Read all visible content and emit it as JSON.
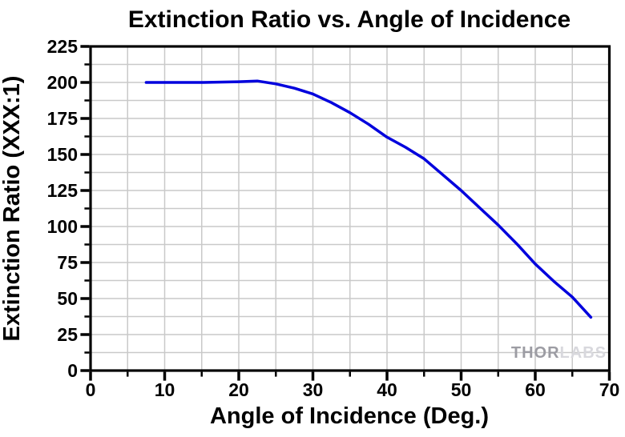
{
  "chart_data": {
    "type": "line",
    "title": "Extinction Ratio vs. Angle of Incidence",
    "xlabel": "Angle of Incidence (Deg.)",
    "ylabel": "Extinction Ratio (XXX:1)",
    "xlim": [
      0,
      70
    ],
    "ylim": [
      0,
      225
    ],
    "x_major_ticks": [
      0,
      10,
      20,
      30,
      40,
      50,
      60,
      70
    ],
    "y_major_ticks": [
      0,
      25,
      50,
      75,
      100,
      125,
      150,
      175,
      200,
      225
    ],
    "x_minor_step": 5,
    "y_minor_step": 12.5,
    "grid": "minor gridlines on, light gray",
    "legend": "none",
    "series": [
      {
        "name": "Extinction Ratio",
        "color": "#0000dd",
        "x": [
          7.5,
          10,
          15,
          20,
          22.5,
          25,
          27.5,
          30,
          32.5,
          35,
          37.5,
          40,
          42.5,
          45,
          47.5,
          50,
          52.5,
          55,
          57.5,
          60,
          62.5,
          65,
          67.5
        ],
        "y": [
          200,
          200,
          200,
          200.5,
          201,
          199,
          196,
          192,
          186,
          179,
          171,
          162,
          155,
          147,
          136,
          125,
          113,
          101,
          88,
          74,
          62,
          51,
          37
        ]
      }
    ]
  },
  "watermark": {
    "part1": "THOR",
    "part2": "LABS"
  },
  "colors": {
    "line": "#0000dd",
    "grid": "#c9c9c9",
    "frame": "#000000",
    "watermark_dark": "#9c9ca3",
    "watermark_light": "#d8d8dd",
    "background": "#ffffff"
  }
}
